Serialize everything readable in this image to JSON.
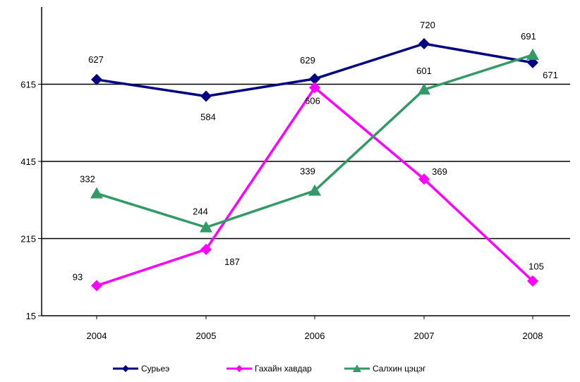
{
  "chart_data": {
    "type": "line",
    "categories": [
      "2004",
      "2005",
      "2006",
      "2007",
      "2008"
    ],
    "y_ticks": [
      15,
      215,
      415,
      615
    ],
    "ylim": [
      15,
      815
    ],
    "grid": true,
    "legend_position": "bottom",
    "series": [
      {
        "name": "Сурьеэ",
        "color": "#000080",
        "marker": "diamond",
        "values": [
          627,
          584,
          629,
          720,
          671
        ],
        "labels": [
          "627",
          "584",
          "629",
          "720",
          "671"
        ]
      },
      {
        "name": "Гахайн хавдар",
        "color": "#ff00ff",
        "marker": "diamond",
        "values": [
          93,
          187,
          606,
          369,
          105
        ],
        "labels": [
          "93",
          "187",
          "606",
          "369",
          "105"
        ]
      },
      {
        "name": "Салхин цэцэг",
        "color": "#339966",
        "marker": "triangle",
        "values": [
          332,
          244,
          339,
          601,
          691
        ],
        "labels": [
          "332",
          "244",
          "339",
          "601",
          "691"
        ]
      }
    ]
  }
}
